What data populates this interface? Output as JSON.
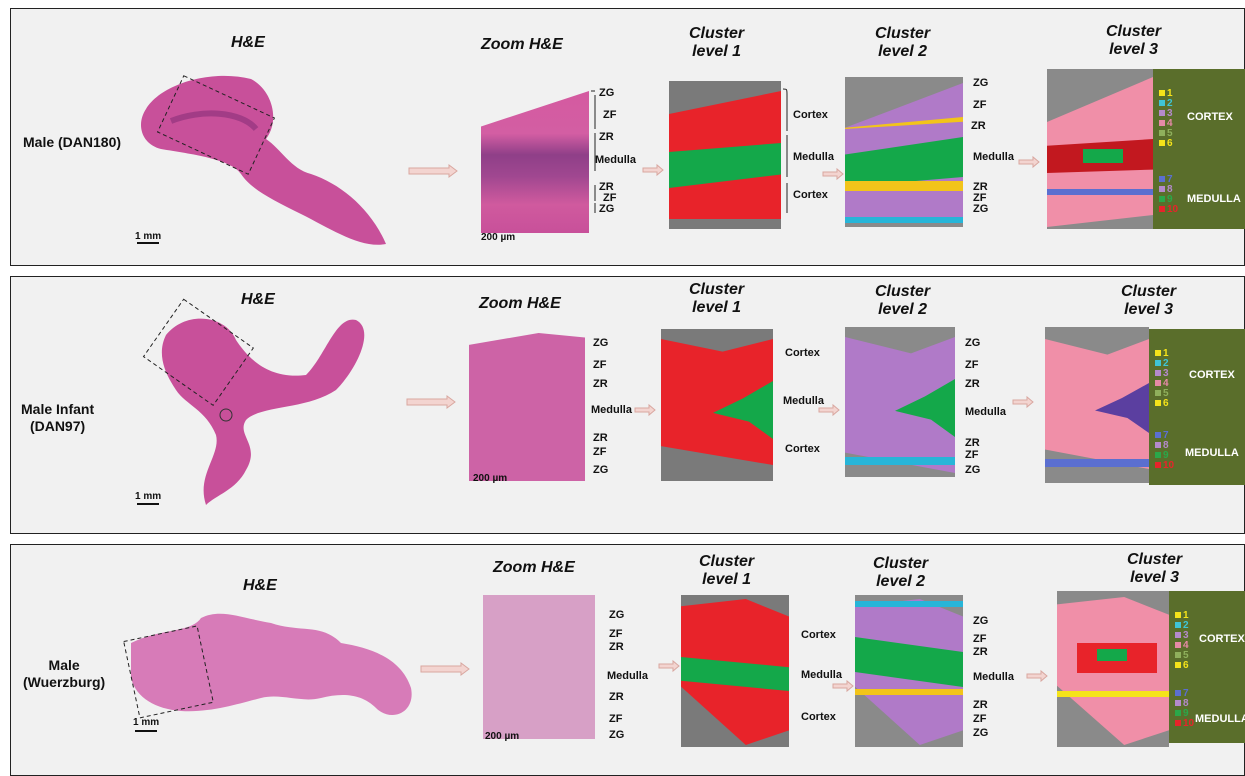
{
  "panels": [
    {
      "sample": "Male (DAN180)",
      "he_title": "H&E",
      "zoom_title": "Zoom  H&E",
      "cl1_title": "Cluster level 1",
      "cl1_line1": "Cluster",
      "cl1_line2": "level 1",
      "cl2_line1": "Cluster",
      "cl2_line2": "level 2",
      "cl3_line1": "Cluster",
      "cl3_line2": "level 3",
      "scale_he": "1 mm",
      "scale_zoom": "200 µm",
      "zones": [
        "ZG",
        "ZF",
        "ZR",
        "Medulla",
        "ZR",
        "ZF",
        "ZG"
      ],
      "regions": [
        "Cortex",
        "Medulla",
        "Cortex"
      ],
      "legend_words": [
        "CORTEX",
        "MEDULLA"
      ],
      "legend": [
        "1",
        "2",
        "3",
        "4",
        "5",
        "6",
        "7",
        "8",
        "9",
        "10"
      ]
    },
    {
      "sample": "Male Infant (DAN97)",
      "sample_line1": "Male Infant",
      "sample_line2": "(DAN97)",
      "he_title": "H&E",
      "zoom_title": "Zoom  H&E",
      "cl1_line1": "Cluster",
      "cl1_line2": "level 1",
      "cl2_line1": "Cluster",
      "cl2_line2": "level 2",
      "cl3_line1": "Cluster",
      "cl3_line2": "level 3",
      "scale_he": "1 mm",
      "scale_zoom": "200 µm",
      "zones": [
        "ZG",
        "ZF",
        "ZR",
        "Medulla",
        "ZR",
        "ZF",
        "ZG"
      ],
      "regions": [
        "Cortex",
        "Medulla",
        "Cortex"
      ],
      "legend_words": [
        "CORTEX",
        "MEDULLA"
      ],
      "legend": [
        "1",
        "2",
        "3",
        "4",
        "5",
        "6",
        "7",
        "8",
        "9",
        "10"
      ]
    },
    {
      "sample_line1": "Male",
      "sample_line2": "(Wuerzburg)",
      "he_title": "H&E",
      "zoom_title": "Zoom  H&E",
      "cl1_line1": "Cluster",
      "cl1_line2": "level 1",
      "cl2_line1": "Cluster",
      "cl2_line2": "level 2",
      "cl3_line1": "Cluster",
      "cl3_line2": "level 3",
      "scale_he": "1 mm",
      "scale_zoom": "200 µm",
      "zones": [
        "ZG",
        "ZF",
        "ZR",
        "Medulla",
        "ZR",
        "ZF",
        "ZG"
      ],
      "regions": [
        "Cortex",
        "Medulla",
        "Cortex"
      ],
      "legend_words": [
        "CORTEX",
        "MEDULLA"
      ],
      "legend": [
        "1",
        "2",
        "3",
        "4",
        "5",
        "6",
        "7",
        "8",
        "9",
        "10"
      ]
    }
  ],
  "colors": {
    "he_pink": "#c8509a",
    "he_light": "#d77bb8",
    "cortex_red": "#e8232a",
    "medulla_green": "#14a84a",
    "zg_cyan": "#27b5d8",
    "zf_violet": "#b07ac8",
    "zr_yellow": "#f2c41a",
    "legend_bg": "#5a6e2b",
    "arrow": "#f3d4d0"
  },
  "legend_colors": [
    "#f5e31a",
    "#3fc4d6",
    "#b48acb",
    "#e58aa6",
    "#8fb05c",
    "#f5e31a",
    "#5b6fd0",
    "#b48acb",
    "#2aa84a",
    "#e8232a"
  ]
}
